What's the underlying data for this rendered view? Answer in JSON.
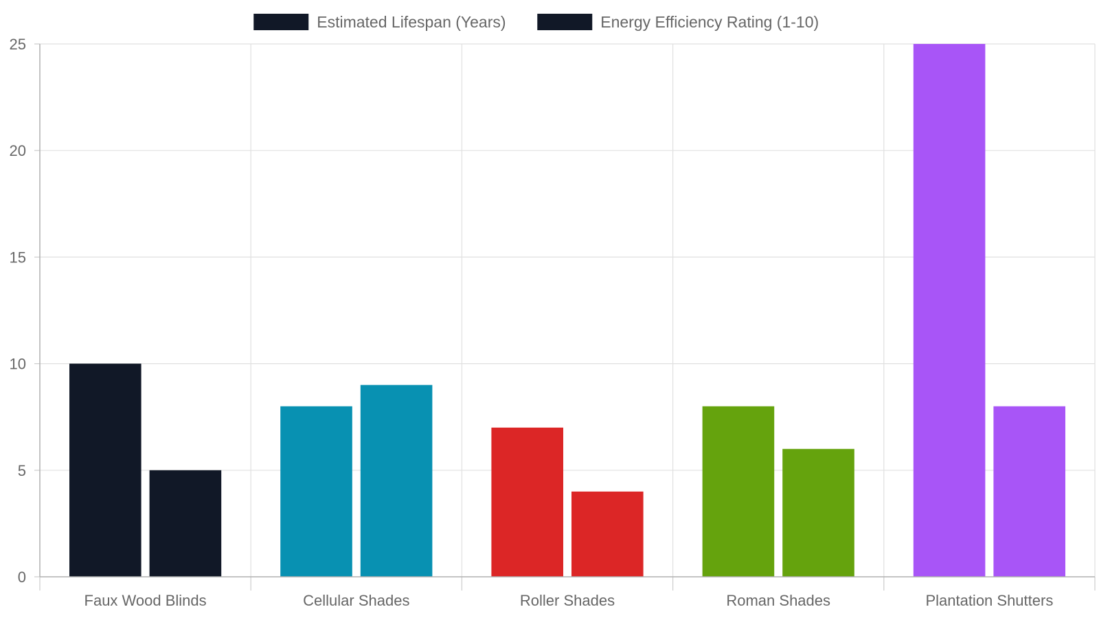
{
  "chart_data": {
    "type": "bar",
    "categories": [
      "Faux Wood Blinds",
      "Cellular Shades",
      "Roller Shades",
      "Roman Shades",
      "Plantation Shutters"
    ],
    "series": [
      {
        "name": "Estimated Lifespan (Years)",
        "values": [
          10,
          8,
          7,
          8,
          25
        ]
      },
      {
        "name": "Energy Efficiency Rating (1-10)",
        "values": [
          5,
          9,
          4,
          6,
          8
        ]
      }
    ],
    "category_colors": [
      "#111827",
      "#0891b2",
      "#dc2626",
      "#65a30d",
      "#a855f7"
    ],
    "legend_swatch_color": "#111827",
    "ylim": [
      0,
      25
    ],
    "y_ticks": [
      "0",
      "5",
      "10",
      "15",
      "20",
      "25"
    ],
    "grid": true,
    "legend_position": "top-center",
    "title": "",
    "xlabel": "",
    "ylabel": ""
  }
}
